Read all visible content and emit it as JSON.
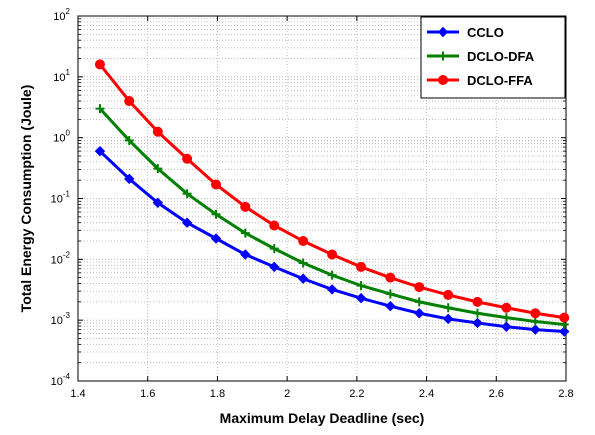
{
  "chart_data": {
    "type": "line",
    "title": "",
    "xlabel": "Maximum Delay Deadline (sec)",
    "ylabel": "Total Energy Consumption (Joule)",
    "xlim": [
      1.4,
      2.8
    ],
    "ylim_log10": [
      -4,
      2
    ],
    "y_scale": "log",
    "grid": true,
    "legend_position": "top-right",
    "x_ticks": [
      1.4,
      1.6,
      1.8,
      2,
      2.2,
      2.4,
      2.6,
      2.8
    ],
    "x_tick_labels": [
      "1.4",
      "1.6",
      "1.8",
      "2",
      "2.2",
      "2.4",
      "2.6",
      "2.8"
    ],
    "y_ticks_exp": [
      -4,
      -3,
      -2,
      -1,
      0,
      1,
      2
    ],
    "y_tick_labels": [
      "-4",
      "-3",
      "-2",
      "-1",
      "0",
      "1",
      "2"
    ],
    "y_tick_base": "10",
    "x": [
      1.463,
      1.547,
      1.629,
      1.713,
      1.796,
      1.88,
      1.963,
      2.046,
      2.129,
      2.212,
      2.296,
      2.379,
      2.462,
      2.546,
      2.629,
      2.712,
      2.795
    ],
    "series": [
      {
        "name": "CCLO",
        "color": "#0000ff",
        "marker": "diamond",
        "values": [
          0.6,
          0.21,
          0.085,
          0.04,
          0.022,
          0.012,
          0.0075,
          0.0048,
          0.0032,
          0.0023,
          0.0017,
          0.0013,
          0.00105,
          0.0009,
          0.00078,
          0.0007,
          0.00065
        ]
      },
      {
        "name": "DCLO-DFA",
        "color": "#008000",
        "marker": "plus",
        "values": [
          3.0,
          0.9,
          0.31,
          0.12,
          0.055,
          0.027,
          0.015,
          0.0087,
          0.0055,
          0.0037,
          0.0027,
          0.002,
          0.0016,
          0.0013,
          0.0011,
          0.00095,
          0.00085
        ]
      },
      {
        "name": "DCLO-FFA",
        "color": "#ff0000",
        "marker": "circle",
        "values": [
          16,
          4.0,
          1.25,
          0.45,
          0.17,
          0.073,
          0.036,
          0.02,
          0.012,
          0.0075,
          0.005,
          0.0035,
          0.0026,
          0.002,
          0.0016,
          0.0013,
          0.0011
        ]
      }
    ]
  }
}
